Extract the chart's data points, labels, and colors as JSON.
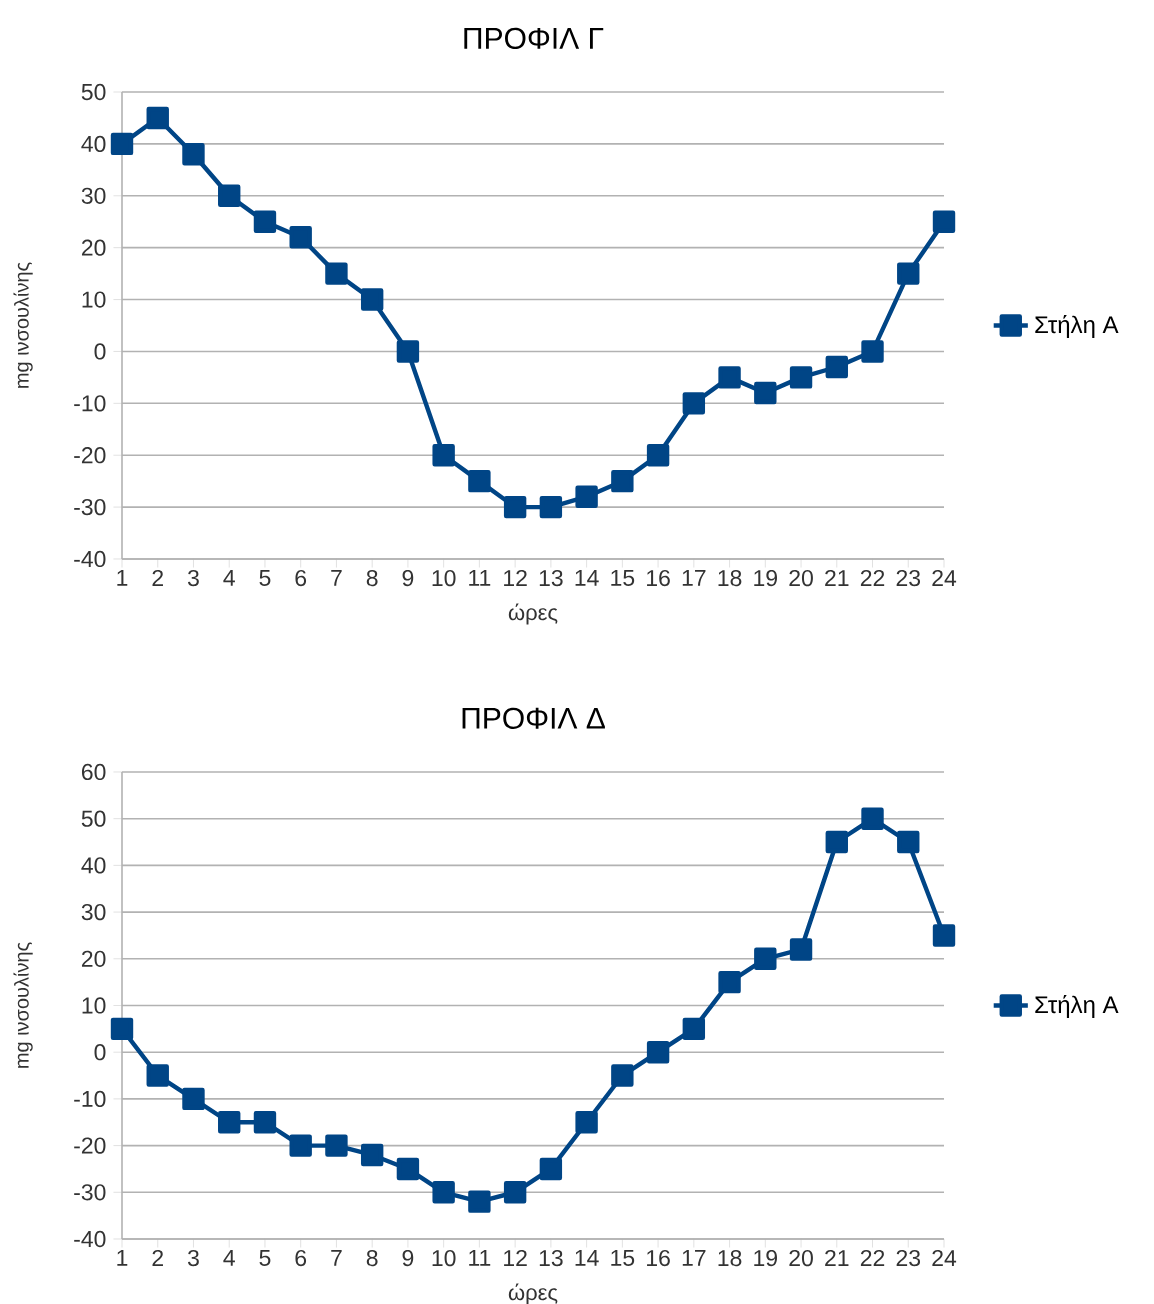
{
  "chart_data": [
    {
      "type": "line",
      "title": "ΠΡΟΦΙΛ Γ",
      "xlabel": "ώρες",
      "ylabel": "mg ινσουλίνης",
      "categories": [
        "1",
        "2",
        "3",
        "4",
        "5",
        "6",
        "7",
        "8",
        "9",
        "10",
        "11",
        "12",
        "13",
        "14",
        "15",
        "16",
        "17",
        "18",
        "19",
        "20",
        "21",
        "22",
        "23",
        "24"
      ],
      "series": [
        {
          "name": "Στήλη Α",
          "color": "#004586",
          "values": [
            40,
            45,
            38,
            30,
            25,
            22,
            15,
            10,
            0,
            -20,
            -25,
            -30,
            -30,
            -28,
            -25,
            -20,
            -10,
            -5,
            -8,
            -5,
            -3,
            0,
            15,
            25
          ]
        }
      ],
      "ylim": [
        -40,
        50
      ],
      "yticks": [
        -40,
        -30,
        -20,
        -10,
        0,
        10,
        20,
        30,
        40,
        50
      ],
      "grid": "y",
      "legend": "right",
      "marker": "square",
      "line_style": "solid"
    },
    {
      "type": "line",
      "title": "ΠΡΟΦΙΛ Δ",
      "xlabel": "ώρες",
      "ylabel": "mg ινσουλίνης",
      "categories": [
        "1",
        "2",
        "3",
        "4",
        "5",
        "6",
        "7",
        "8",
        "9",
        "10",
        "11",
        "12",
        "13",
        "14",
        "15",
        "16",
        "17",
        "18",
        "19",
        "20",
        "21",
        "22",
        "23",
        "24"
      ],
      "series": [
        {
          "name": "Στήλη Α",
          "color": "#004586",
          "values": [
            5,
            -5,
            -10,
            -15,
            -15,
            -20,
            -20,
            -22,
            -25,
            -30,
            -32,
            -30,
            -25,
            -15,
            -5,
            0,
            5,
            15,
            20,
            22,
            45,
            50,
            45,
            25
          ]
        }
      ],
      "ylim": [
        -40,
        60
      ],
      "yticks": [
        -40,
        -30,
        -20,
        -10,
        0,
        10,
        20,
        30,
        40,
        50,
        60
      ],
      "grid": "y",
      "legend": "right",
      "marker": "square",
      "line_style": "solid"
    }
  ]
}
